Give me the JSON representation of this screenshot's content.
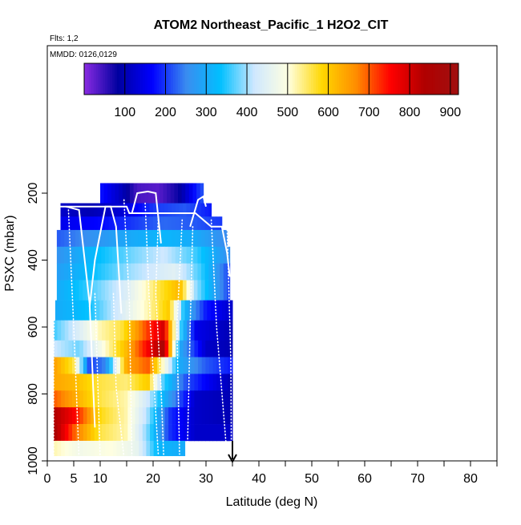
{
  "chart_data": {
    "type": "heatmap",
    "title": "ATOM2 Northeast_Pacific_1 H2O2_CIT",
    "annotations": {
      "flights": "Flts: 1,2",
      "dates": "MMDD: 0126,0129"
    },
    "xlabel": "Latitude (deg N)",
    "ylabel": "PSXC (mbar)",
    "xlim": [
      0,
      85
    ],
    "ylim": [
      1000,
      0
    ],
    "y_reversed": true,
    "x_ticks": [
      0,
      5,
      10,
      20,
      30,
      40,
      50,
      60,
      70,
      80
    ],
    "x_ticks_unlabeled": [
      15,
      25,
      35,
      45,
      55,
      65,
      75,
      85
    ],
    "y_ticks": [
      200,
      400,
      600,
      800,
      1000
    ],
    "colorbar": {
      "min": 0,
      "max": 920,
      "ticks": [
        100,
        200,
        300,
        400,
        500,
        600,
        700,
        800,
        900
      ],
      "colors": [
        "#8a2be2",
        "#0000a0",
        "#0000ff",
        "#3a8cf0",
        "#00bfff",
        "#cfe8ff",
        "#ffffe0",
        "#ffd700",
        "#ff8c00",
        "#ff0000",
        "#b00000",
        "#a01010"
      ]
    },
    "pressure_levels": [
      {
        "p_top": 170,
        "p_bot": 230,
        "x_start": 10,
        "x_end": 29.5
      },
      {
        "p_top": 230,
        "p_bot": 270,
        "x_start": 2.5,
        "x_end": 31
      },
      {
        "p_top": 270,
        "p_bot": 310,
        "x_start": 2.5,
        "x_end": 33
      },
      {
        "p_top": 310,
        "p_bot": 360,
        "x_start": 1.8,
        "x_end": 34
      },
      {
        "p_top": 360,
        "p_bot": 410,
        "x_start": 1.8,
        "x_end": 34.5
      },
      {
        "p_top": 410,
        "p_bot": 460,
        "x_start": 1.8,
        "x_end": 34.5
      },
      {
        "p_top": 460,
        "p_bot": 520,
        "x_start": 1.8,
        "x_end": 34.5
      },
      {
        "p_top": 520,
        "p_bot": 580,
        "x_start": 1.5,
        "x_end": 35
      },
      {
        "p_top": 580,
        "p_bot": 640,
        "x_start": 1.2,
        "x_end": 35
      },
      {
        "p_top": 640,
        "p_bot": 690,
        "x_start": 1.2,
        "x_end": 35
      },
      {
        "p_top": 690,
        "p_bot": 740,
        "x_start": 1.2,
        "x_end": 35
      },
      {
        "p_top": 740,
        "p_bot": 790,
        "x_start": 1.2,
        "x_end": 35
      },
      {
        "p_top": 790,
        "p_bot": 840,
        "x_start": 1.2,
        "x_end": 35
      },
      {
        "p_top": 840,
        "p_bot": 890,
        "x_start": 1.2,
        "x_end": 35
      },
      {
        "p_top": 890,
        "p_bot": 940,
        "x_start": 1.2,
        "x_end": 35
      },
      {
        "p_top": 940,
        "p_bot": 985,
        "x_start": 1.2,
        "x_end": 26
      }
    ],
    "series": [
      {
        "value_profiles": [
          {
            "level": 0,
            "points": [
              [
                10,
                180
              ],
              [
                14,
                110
              ],
              [
                17,
                40
              ],
              [
                21,
                30
              ],
              [
                25,
                80
              ],
              [
                28,
                180
              ],
              [
                29.5,
                220
              ]
            ]
          },
          {
            "level": 1,
            "points": [
              [
                2.5,
                120
              ],
              [
                8,
                100
              ],
              [
                14,
                130
              ],
              [
                20,
                200
              ],
              [
                26,
                220
              ],
              [
                31,
                180
              ]
            ]
          },
          {
            "level": 2,
            "points": [
              [
                2.5,
                150
              ],
              [
                10,
                170
              ],
              [
                16,
                200
              ],
              [
                22,
                230
              ],
              [
                28,
                220
              ],
              [
                33,
                200
              ]
            ]
          },
          {
            "level": 3,
            "points": [
              [
                1.8,
                220
              ],
              [
                8,
                260
              ],
              [
                16,
                300
              ],
              [
                22,
                320
              ],
              [
                28,
                300
              ],
              [
                34,
                250
              ]
            ]
          },
          {
            "level": 4,
            "points": [
              [
                1.8,
                260
              ],
              [
                8,
                320
              ],
              [
                16,
                380
              ],
              [
                22,
                420
              ],
              [
                28,
                360
              ],
              [
                34,
                260
              ]
            ]
          },
          {
            "level": 5,
            "points": [
              [
                1.8,
                280
              ],
              [
                8,
                330
              ],
              [
                16,
                400
              ],
              [
                24,
                450
              ],
              [
                29,
                360
              ],
              [
                34.5,
                200
              ]
            ]
          },
          {
            "level": 6,
            "points": [
              [
                1.8,
                300
              ],
              [
                8,
                360
              ],
              [
                15,
                440
              ],
              [
                21,
                560
              ],
              [
                25,
                620
              ],
              [
                28,
                400
              ],
              [
                34.5,
                200
              ]
            ]
          },
          {
            "level": 7,
            "points": [
              [
                1.5,
                300
              ],
              [
                8,
                340
              ],
              [
                13,
                420
              ],
              [
                19,
                520
              ],
              [
                23,
                600
              ],
              [
                26,
                320
              ],
              [
                30,
                180
              ],
              [
                35,
                120
              ]
            ]
          },
          {
            "level": 8,
            "points": [
              [
                1.2,
                360
              ],
              [
                6,
                440
              ],
              [
                10,
                520
              ],
              [
                14,
                560
              ],
              [
                19,
                720
              ],
              [
                22,
                800
              ],
              [
                25,
                380
              ],
              [
                28,
                150
              ],
              [
                35,
                100
              ]
            ]
          },
          {
            "level": 9,
            "points": [
              [
                1.2,
                420
              ],
              [
                6,
                380
              ],
              [
                10,
                480
              ],
              [
                15,
                620
              ],
              [
                19,
                760
              ],
              [
                22,
                860
              ],
              [
                25,
                300
              ],
              [
                30,
                120
              ],
              [
                35,
                100
              ]
            ]
          },
          {
            "level": 10,
            "points": [
              [
                1.2,
                650
              ],
              [
                5,
                560
              ],
              [
                8,
                200
              ],
              [
                11,
                250
              ],
              [
                15,
                640
              ],
              [
                19,
                700
              ],
              [
                22,
                500
              ],
              [
                25,
                300
              ],
              [
                30,
                220
              ],
              [
                35,
                180
              ]
            ]
          },
          {
            "level": 11,
            "points": [
              [
                1.2,
                640
              ],
              [
                5,
                620
              ],
              [
                10,
                560
              ],
              [
                15,
                540
              ],
              [
                19,
                600
              ],
              [
                22,
                360
              ],
              [
                26,
                220
              ],
              [
                31,
                150
              ],
              [
                35,
                100
              ]
            ]
          },
          {
            "level": 12,
            "points": [
              [
                1.2,
                700
              ],
              [
                5,
                640
              ],
              [
                10,
                560
              ],
              [
                15,
                520
              ],
              [
                19,
                420
              ],
              [
                23,
                280
              ],
              [
                28,
                120
              ],
              [
                35,
                100
              ]
            ]
          },
          {
            "level": 13,
            "points": [
              [
                1.2,
                840
              ],
              [
                5,
                760
              ],
              [
                10,
                580
              ],
              [
                15,
                520
              ],
              [
                19,
                400
              ],
              [
                23,
                200
              ],
              [
                28,
                120
              ],
              [
                35,
                100
              ]
            ]
          },
          {
            "level": 14,
            "points": [
              [
                1.2,
                860
              ],
              [
                5,
                700
              ],
              [
                10,
                560
              ],
              [
                15,
                520
              ],
              [
                19,
                380
              ],
              [
                23,
                200
              ],
              [
                28,
                120
              ],
              [
                35,
                120
              ]
            ]
          },
          {
            "level": 15,
            "points": [
              [
                1.2,
                520
              ],
              [
                6,
                480
              ],
              [
                12,
                500
              ],
              [
                17,
                460
              ],
              [
                21,
                320
              ],
              [
                26,
                300
              ]
            ]
          }
        ]
      }
    ],
    "flight_tracks": [
      {
        "style": "solid",
        "points": [
          [
            2.5,
            240
          ],
          [
            10,
            240
          ],
          [
            15,
            240
          ],
          [
            15.5,
            260
          ],
          [
            20,
            260
          ],
          [
            28,
            260
          ],
          [
            29.5,
            280
          ],
          [
            31,
            300
          ],
          [
            33,
            300
          ],
          [
            34,
            380
          ],
          [
            34.5,
            450
          ]
        ]
      },
      {
        "style": "solid",
        "points": [
          [
            3.5,
            240
          ],
          [
            6,
            250
          ],
          [
            8,
            530
          ],
          [
            9,
            900
          ]
        ]
      },
      {
        "style": "solid",
        "points": [
          [
            8,
            540
          ],
          [
            9,
            400
          ],
          [
            11,
            240
          ],
          [
            12,
            240
          ],
          [
            13,
            300
          ],
          [
            14,
            560
          ]
        ]
      },
      {
        "style": "solid",
        "points": [
          [
            16,
            260
          ],
          [
            17,
            200
          ],
          [
            19,
            195
          ],
          [
            20.5,
            200
          ],
          [
            21.5,
            350
          ]
        ]
      },
      {
        "style": "solid",
        "points": [
          [
            27,
            300
          ],
          [
            28.5,
            220
          ],
          [
            29.5,
            210
          ],
          [
            30,
            240
          ]
        ]
      },
      {
        "style": "dotted",
        "points": [
          [
            1.5,
            310
          ],
          [
            1.2,
            700
          ],
          [
            1.2,
            990
          ]
        ]
      },
      {
        "style": "dotted",
        "points": [
          [
            4,
            250
          ],
          [
            5,
            600
          ],
          [
            6,
            990
          ]
        ]
      },
      {
        "style": "dotted",
        "points": [
          [
            9,
            500
          ],
          [
            10,
            990
          ]
        ]
      },
      {
        "style": "dotted",
        "points": [
          [
            12.5,
            500
          ],
          [
            13,
            780
          ],
          [
            14.5,
            990
          ]
        ]
      },
      {
        "style": "dotted",
        "points": [
          [
            14.5,
            220
          ],
          [
            15.5,
            520
          ],
          [
            16,
            990
          ]
        ]
      },
      {
        "style": "dotted",
        "points": [
          [
            18.5,
            230
          ],
          [
            19.5,
            600
          ],
          [
            21,
            985
          ]
        ]
      },
      {
        "style": "dotted",
        "points": [
          [
            21,
            270
          ],
          [
            20.5,
            500
          ],
          [
            21.5,
            780
          ],
          [
            22,
            985
          ]
        ]
      },
      {
        "style": "dotted",
        "points": [
          [
            25.5,
            280
          ],
          [
            24.5,
            600
          ],
          [
            25,
            980
          ]
        ]
      },
      {
        "style": "dotted",
        "points": [
          [
            27.5,
            300
          ],
          [
            27,
            600
          ],
          [
            26.5,
            960
          ]
        ]
      },
      {
        "style": "dotted",
        "points": [
          [
            31,
            280
          ],
          [
            32,
            600
          ],
          [
            34,
            990
          ]
        ]
      },
      {
        "style": "dotted",
        "points": [
          [
            34,
            310
          ],
          [
            34.7,
            700
          ],
          [
            34.8,
            990
          ]
        ]
      }
    ],
    "arrow_marker": {
      "x": 35,
      "p_from": 940,
      "p_to": 1000
    }
  }
}
